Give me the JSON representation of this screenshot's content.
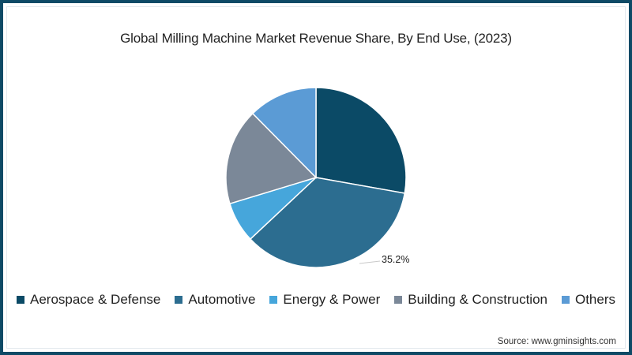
{
  "chart_data": {
    "type": "pie",
    "title": "Global Milling Machine Market Revenue Share, By End Use, (2023)",
    "categories": [
      "Aerospace & Defense",
      "Automotive",
      "Energy & Power",
      "Building & Construction",
      "Others"
    ],
    "values": [
      27.8,
      35.2,
      7.3,
      17.3,
      12.4
    ],
    "unit": "%",
    "colors": [
      "#0b4a66",
      "#2c6d90",
      "#46a6db",
      "#7b8898",
      "#5b9bd5"
    ],
    "start_angle_deg": 0,
    "direction": "clockwise",
    "data_labels": [
      {
        "category": "Automotive",
        "text": "35.2%"
      }
    ],
    "legend_position": "bottom",
    "source": "Source: www.gminsights.com"
  },
  "header": {
    "title": "Global Milling Machine Market Revenue Share, By End Use, (2023)"
  },
  "legend": [
    {
      "label": "Aerospace & Defense",
      "color": "#0b4a66"
    },
    {
      "label": "Automotive",
      "color": "#2c6d90"
    },
    {
      "label": "Energy & Power",
      "color": "#46a6db"
    },
    {
      "label": "Building & Construction",
      "color": "#7b8898"
    },
    {
      "label": "Others",
      "color": "#5b9bd5"
    }
  ],
  "annotation": {
    "automotive_label": "35.2%"
  },
  "footer": {
    "source": "Source: www.gminsights.com"
  },
  "theme": {
    "border_color": "#0e4a66"
  }
}
